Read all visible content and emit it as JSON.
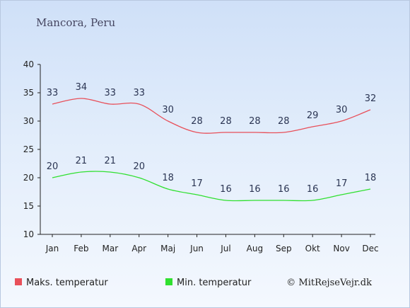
{
  "chart_data": {
    "type": "line",
    "title": "Mancora, Peru",
    "categories": [
      "Jan",
      "Feb",
      "Mar",
      "Apr",
      "Maj",
      "Jun",
      "Jul",
      "Aug",
      "Sep",
      "Okt",
      "Nov",
      "Dec"
    ],
    "series": [
      {
        "name": "Maks. temperatur",
        "color": "#e8505a",
        "values": [
          33,
          34,
          33,
          33,
          30,
          28,
          28,
          28,
          28,
          29,
          30,
          32
        ]
      },
      {
        "name": "Min. temperatur",
        "color": "#30e030",
        "values": [
          20,
          21,
          21,
          20,
          18,
          17,
          16,
          16,
          16,
          16,
          17,
          18
        ]
      }
    ],
    "ylim": [
      10,
      40
    ],
    "yticks": [
      10,
      15,
      20,
      25,
      30,
      35,
      40
    ],
    "legend_position": "bottom",
    "grid": false
  },
  "credit": "© MitRejseVejr.dk"
}
